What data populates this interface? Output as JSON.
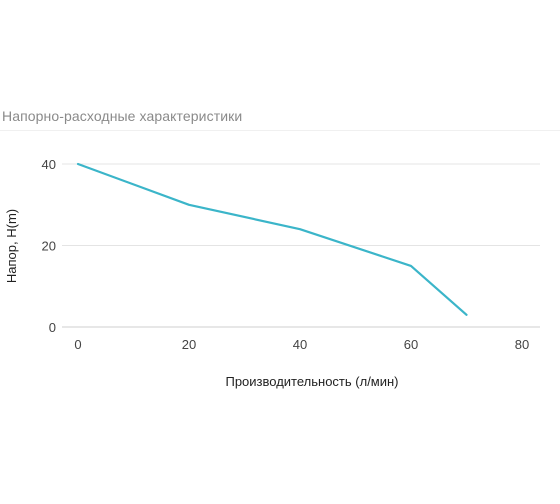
{
  "page": {
    "title": "Напорно-расходные характеристики"
  },
  "chart_data": {
    "type": "line",
    "xlabel": "Производительность (л/мин)",
    "ylabel": "Напор, H(m)",
    "xlim": [
      0,
      80
    ],
    "ylim": [
      0,
      40
    ],
    "x_ticks": [
      0,
      20,
      40,
      60,
      80
    ],
    "y_ticks": [
      0,
      20,
      40
    ],
    "grid": "horizontal",
    "legend": "none",
    "series": [
      {
        "color": "#3bb5c9",
        "points": [
          {
            "x": 0,
            "y": 40
          },
          {
            "x": 20,
            "y": 30
          },
          {
            "x": 40,
            "y": 24
          },
          {
            "x": 60,
            "y": 15
          },
          {
            "x": 70,
            "y": 3
          }
        ]
      }
    ]
  },
  "colors": {
    "grid": "#e4e4e4",
    "axis_line": "#cfcfcf",
    "title_text": "#8a8a8a"
  }
}
